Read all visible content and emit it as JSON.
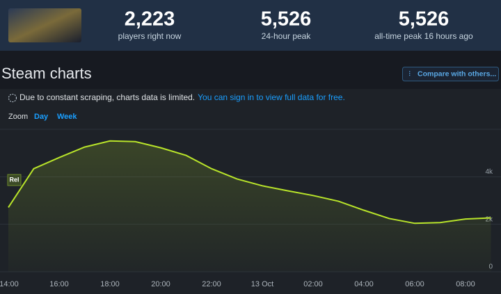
{
  "stats": [
    {
      "value": "2,223",
      "label": "players right now"
    },
    {
      "value": "5,526",
      "label": "24-hour peak"
    },
    {
      "value": "5,526",
      "label": "all-time peak 16 hours ago"
    }
  ],
  "heading": "Steam charts",
  "compare_button": "Compare with others...",
  "notice": {
    "text": "Due to constant scraping, charts data is limited.",
    "link": "You can sign in to view full data for free."
  },
  "zoom": {
    "label": "Zoom",
    "options": [
      "Day",
      "Week"
    ]
  },
  "chart_data": {
    "type": "line",
    "categories": [
      "14:00",
      null,
      "16:00",
      null,
      "18:00",
      null,
      "20:00",
      null,
      "22:00",
      null,
      "13 Oct",
      null,
      "02:00",
      null,
      "04:00",
      null,
      "06:00",
      null,
      "08:00",
      null
    ],
    "values": [
      2710,
      4340,
      4810,
      5250,
      5510,
      5480,
      5220,
      4900,
      4340,
      3910,
      3620,
      3410,
      3210,
      2970,
      2590,
      2240,
      2040,
      2070,
      2220,
      2270
    ],
    "color": "#b9e52a",
    "ylim": [
      0,
      6000
    ],
    "yticks": [
      0,
      {
        "value": 2000,
        "label": "2k"
      },
      {
        "value": 4000,
        "label": "4k"
      }
    ],
    "grid": true,
    "annotation": "Rel"
  }
}
